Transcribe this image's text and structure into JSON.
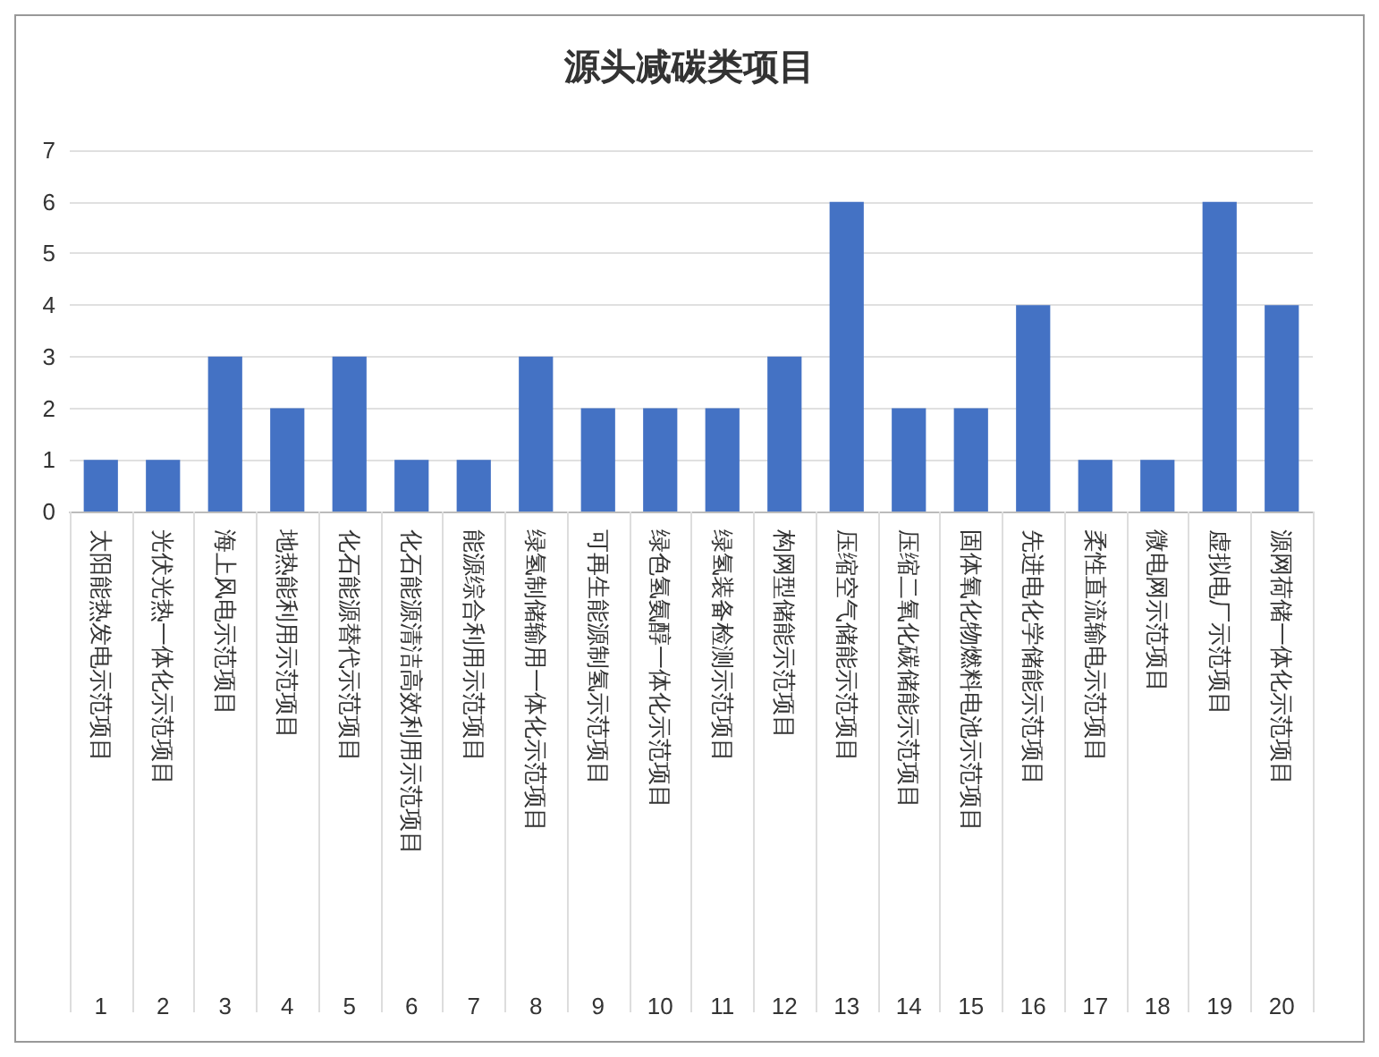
{
  "chart_data": {
    "type": "bar",
    "title": "源头减碳类项目",
    "categories": [
      "太阳能热发电示范项目",
      "光伏光热一体化示范项目",
      "海上风电示范项目",
      "地热能利用示范项目",
      "化石能源替代示范项目",
      "化石能源清洁高效利用示范项目",
      "能源综合利用示范项目",
      "绿氢制储输用一体化示范项目",
      "可再生能源制氢示范项目",
      "绿色氢氨醇一体化示范项目",
      "绿氢装备检测示范项目",
      "构网型储能示范项目",
      "压缩空气储能示范项目",
      "压缩二氧化碳储能示范项目",
      "固体氧化物燃料电池示范项目",
      "先进电化学储能示范项目",
      "柔性直流输电示范项目",
      "微电网示范项目",
      "虚拟电厂示范项目",
      "源网荷储一体化示范项目"
    ],
    "values": [
      1,
      1,
      3,
      2,
      3,
      1,
      1,
      3,
      2,
      2,
      2,
      3,
      6,
      2,
      2,
      4,
      1,
      1,
      6,
      4
    ],
    "color": "#4472c4",
    "ylim": [
      0,
      7
    ],
    "yticks": [
      0,
      1,
      2,
      3,
      4,
      5,
      6,
      7
    ],
    "grid": "y",
    "annotations": [
      "1",
      "2",
      "3",
      "4",
      "5",
      "6",
      "7",
      "8",
      "9",
      "10",
      "11",
      "12",
      "13",
      "14",
      "15",
      "16",
      "17",
      "18",
      "19",
      "20"
    ]
  }
}
